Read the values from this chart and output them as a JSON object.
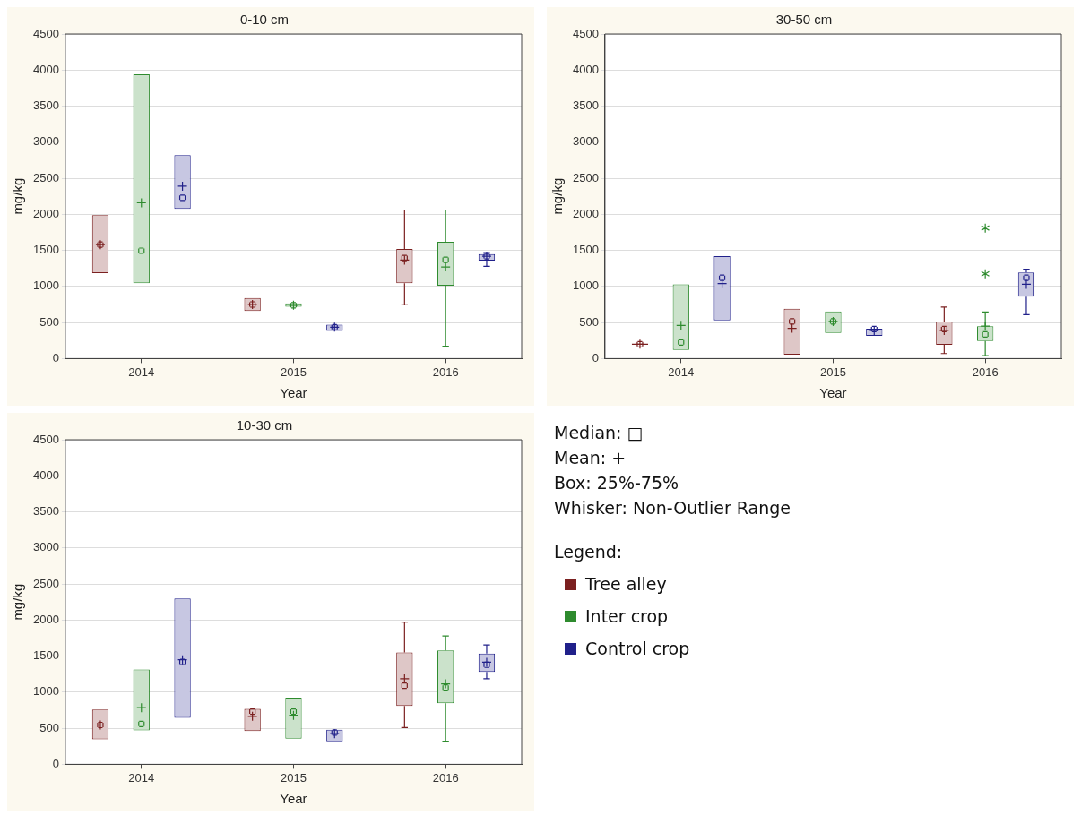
{
  "chart_data": [
    {
      "type": "box",
      "title": "0-10 cm",
      "xlabel": "Year",
      "ylabel": "mg/kg",
      "categories": [
        "2014",
        "2015",
        "2016"
      ],
      "ylim": [
        0,
        4500
      ],
      "yticks": [
        0,
        500,
        1000,
        1500,
        2000,
        2500,
        3000,
        3500,
        4000,
        4500
      ],
      "grid": "y",
      "series": [
        {
          "color": "#7b2020",
          "boxes": [
            {
              "low": 1185,
              "q1": 1185,
              "median": 1580,
              "q3": 1990,
              "high": 1990,
              "mean": 1580
            },
            {
              "low": 660,
              "q1": 660,
              "median": 750,
              "q3": 840,
              "high": 840,
              "mean": 750
            },
            {
              "low": 745,
              "q1": 1045,
              "median": 1395,
              "q3": 1520,
              "high": 2060,
              "mean": 1365
            }
          ]
        },
        {
          "color": "#2e8b2e",
          "boxes": [
            {
              "low": 1045,
              "q1": 1045,
              "median": 1495,
              "q3": 3940,
              "high": 3940,
              "mean": 2160
            },
            {
              "low": 720,
              "q1": 720,
              "median": 740,
              "q3": 765,
              "high": 765,
              "mean": 740
            },
            {
              "low": 170,
              "q1": 1010,
              "median": 1370,
              "q3": 1620,
              "high": 2060,
              "mean": 1270
            }
          ]
        },
        {
          "color": "#20208a",
          "boxes": [
            {
              "low": 2075,
              "q1": 2075,
              "median": 2230,
              "q3": 2820,
              "high": 2820,
              "mean": 2390
            },
            {
              "low": 385,
              "q1": 385,
              "median": 435,
              "q3": 470,
              "high": 470,
              "mean": 435
            },
            {
              "low": 1280,
              "q1": 1360,
              "median": 1420,
              "q3": 1450,
              "high": 1470,
              "mean": 1420
            }
          ]
        }
      ]
    },
    {
      "type": "box",
      "title": "30-50 cm",
      "xlabel": "Year",
      "ylabel": "mg/kg",
      "categories": [
        "2014",
        "2015",
        "2016"
      ],
      "ylim": [
        0,
        4500
      ],
      "yticks": [
        0,
        500,
        1000,
        1500,
        2000,
        2500,
        3000,
        3500,
        4000,
        4500
      ],
      "grid": "y",
      "series": [
        {
          "color": "#7b2020",
          "boxes": [
            {
              "low": 190,
              "q1": 190,
              "median": 200,
              "q3": 210,
              "high": 210,
              "mean": 200
            },
            {
              "low": 55,
              "q1": 55,
              "median": 515,
              "q3": 690,
              "high": 690,
              "mean": 420
            },
            {
              "low": 70,
              "q1": 190,
              "median": 410,
              "q3": 515,
              "high": 715,
              "mean": 390
            }
          ]
        },
        {
          "color": "#2e8b2e",
          "boxes": [
            {
              "low": 120,
              "q1": 120,
              "median": 225,
              "q3": 1030,
              "high": 1030,
              "mean": 460
            },
            {
              "low": 355,
              "q1": 355,
              "median": 515,
              "q3": 655,
              "high": 655,
              "mean": 515
            },
            {
              "low": 40,
              "q1": 245,
              "median": 335,
              "q3": 450,
              "high": 645,
              "mean": 450,
              "outliers": [
                1810,
                1175
              ]
            }
          ]
        },
        {
          "color": "#20208a",
          "boxes": [
            {
              "low": 530,
              "q1": 530,
              "median": 1120,
              "q3": 1420,
              "high": 1420,
              "mean": 1040
            },
            {
              "low": 315,
              "q1": 315,
              "median": 410,
              "q3": 415,
              "high": 415,
              "mean": 390
            },
            {
              "low": 610,
              "q1": 860,
              "median": 1120,
              "q3": 1195,
              "high": 1240,
              "mean": 1030
            }
          ]
        }
      ]
    },
    {
      "type": "box",
      "title": "10-30 cm",
      "xlabel": "Year",
      "ylabel": "mg/kg",
      "categories": [
        "2014",
        "2015",
        "2016"
      ],
      "ylim": [
        0,
        4500
      ],
      "yticks": [
        0,
        500,
        1000,
        1500,
        2000,
        2500,
        3000,
        3500,
        4000,
        4500
      ],
      "grid": "y",
      "legend": "right",
      "legend_title": "Legend:",
      "annotations": [
        "Median: □",
        "Mean: +",
        "Box: 25%-75%",
        "Whisker: Non-Outlier Range"
      ],
      "series": [
        {
          "name": "Tree alley",
          "color": "#7b2020",
          "boxes": [
            {
              "low": 345,
              "q1": 345,
              "median": 545,
              "q3": 760,
              "high": 760,
              "mean": 545
            },
            {
              "low": 460,
              "q1": 460,
              "median": 730,
              "q3": 770,
              "high": 770,
              "mean": 665
            },
            {
              "low": 510,
              "q1": 810,
              "median": 1090,
              "q3": 1550,
              "high": 1970,
              "mean": 1185
            }
          ]
        },
        {
          "name": "Inter crop",
          "color": "#2e8b2e",
          "boxes": [
            {
              "low": 470,
              "q1": 470,
              "median": 560,
              "q3": 1315,
              "high": 1315,
              "mean": 785
            },
            {
              "low": 355,
              "q1": 355,
              "median": 730,
              "q3": 925,
              "high": 925,
              "mean": 680
            },
            {
              "low": 320,
              "q1": 845,
              "median": 1065,
              "q3": 1580,
              "high": 1780,
              "mean": 1115
            }
          ]
        },
        {
          "name": "Control crop",
          "color": "#20208a",
          "boxes": [
            {
              "low": 645,
              "q1": 645,
              "median": 1420,
              "q3": 2300,
              "high": 2300,
              "mean": 1450
            },
            {
              "low": 320,
              "q1": 320,
              "median": 440,
              "q3": 480,
              "high": 480,
              "mean": 425
            },
            {
              "low": 1185,
              "q1": 1280,
              "median": 1380,
              "q3": 1535,
              "high": 1655,
              "mean": 1415
            }
          ]
        }
      ]
    }
  ]
}
